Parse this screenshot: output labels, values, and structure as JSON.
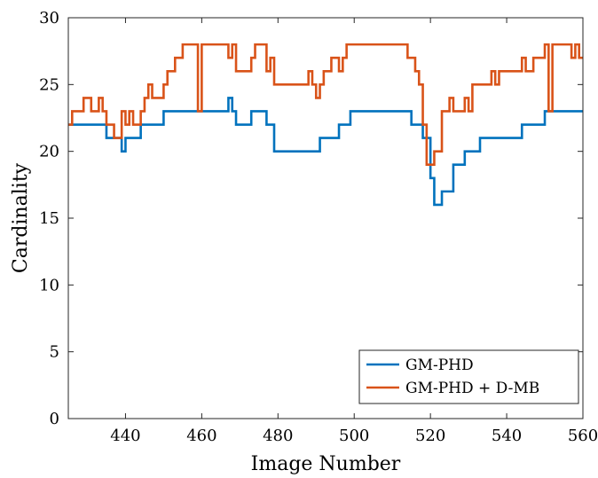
{
  "chart_data": {
    "type": "line",
    "xlabel": "Image Number",
    "ylabel": "Cardinality",
    "xlim": [
      425,
      560
    ],
    "ylim": [
      0,
      30
    ],
    "xticks": [
      440,
      460,
      480,
      500,
      520,
      540,
      560
    ],
    "yticks": [
      0,
      5,
      10,
      15,
      20,
      25,
      30
    ],
    "grid": false,
    "legend_position": "bottom-right",
    "series": [
      {
        "name": "GM-PHD",
        "color": "#0072BD",
        "step": true,
        "x": [
          425,
          434,
          435,
          437,
          439,
          440,
          444,
          446,
          450,
          467,
          468,
          469,
          473,
          477,
          479,
          491,
          496,
          499,
          515,
          518,
          520,
          521,
          523,
          526,
          529,
          533,
          544,
          550,
          560
        ],
        "y": [
          22,
          22,
          21,
          21,
          20,
          21,
          22,
          22,
          23,
          24,
          23,
          22,
          23,
          22,
          20,
          21,
          22,
          23,
          22,
          21,
          18,
          16,
          17,
          19,
          20,
          21,
          22,
          23,
          23
        ]
      },
      {
        "name": "GM-PHD + D-MB",
        "color": "#D95319",
        "step": true,
        "x": [
          425,
          426,
          428,
          429,
          431,
          432,
          433,
          434,
          435,
          437,
          439,
          440,
          441,
          442,
          444,
          445,
          446,
          447,
          450,
          451,
          453,
          455,
          459,
          460,
          467,
          468,
          469,
          473,
          474,
          477,
          478,
          479,
          488,
          489,
          490,
          491,
          492,
          494,
          496,
          497,
          498,
          499,
          500,
          514,
          516,
          517,
          518,
          519,
          520,
          521,
          523,
          525,
          526,
          529,
          530,
          531,
          533,
          536,
          537,
          538,
          544,
          545,
          547,
          550,
          551,
          552,
          557,
          558,
          559,
          560
        ],
        "y": [
          22,
          23,
          23,
          24,
          23,
          23,
          24,
          23,
          22,
          21,
          23,
          22,
          23,
          22,
          23,
          24,
          25,
          24,
          25,
          26,
          27,
          28,
          23,
          28,
          27,
          28,
          26,
          27,
          28,
          26,
          27,
          25,
          26,
          25,
          24,
          25,
          26,
          27,
          26,
          27,
          28,
          28,
          28,
          27,
          26,
          25,
          22,
          19,
          19,
          20,
          23,
          24,
          23,
          24,
          23,
          25,
          25,
          26,
          25,
          26,
          27,
          26,
          27,
          28,
          23,
          28,
          27,
          28,
          27,
          27
        ]
      }
    ]
  }
}
